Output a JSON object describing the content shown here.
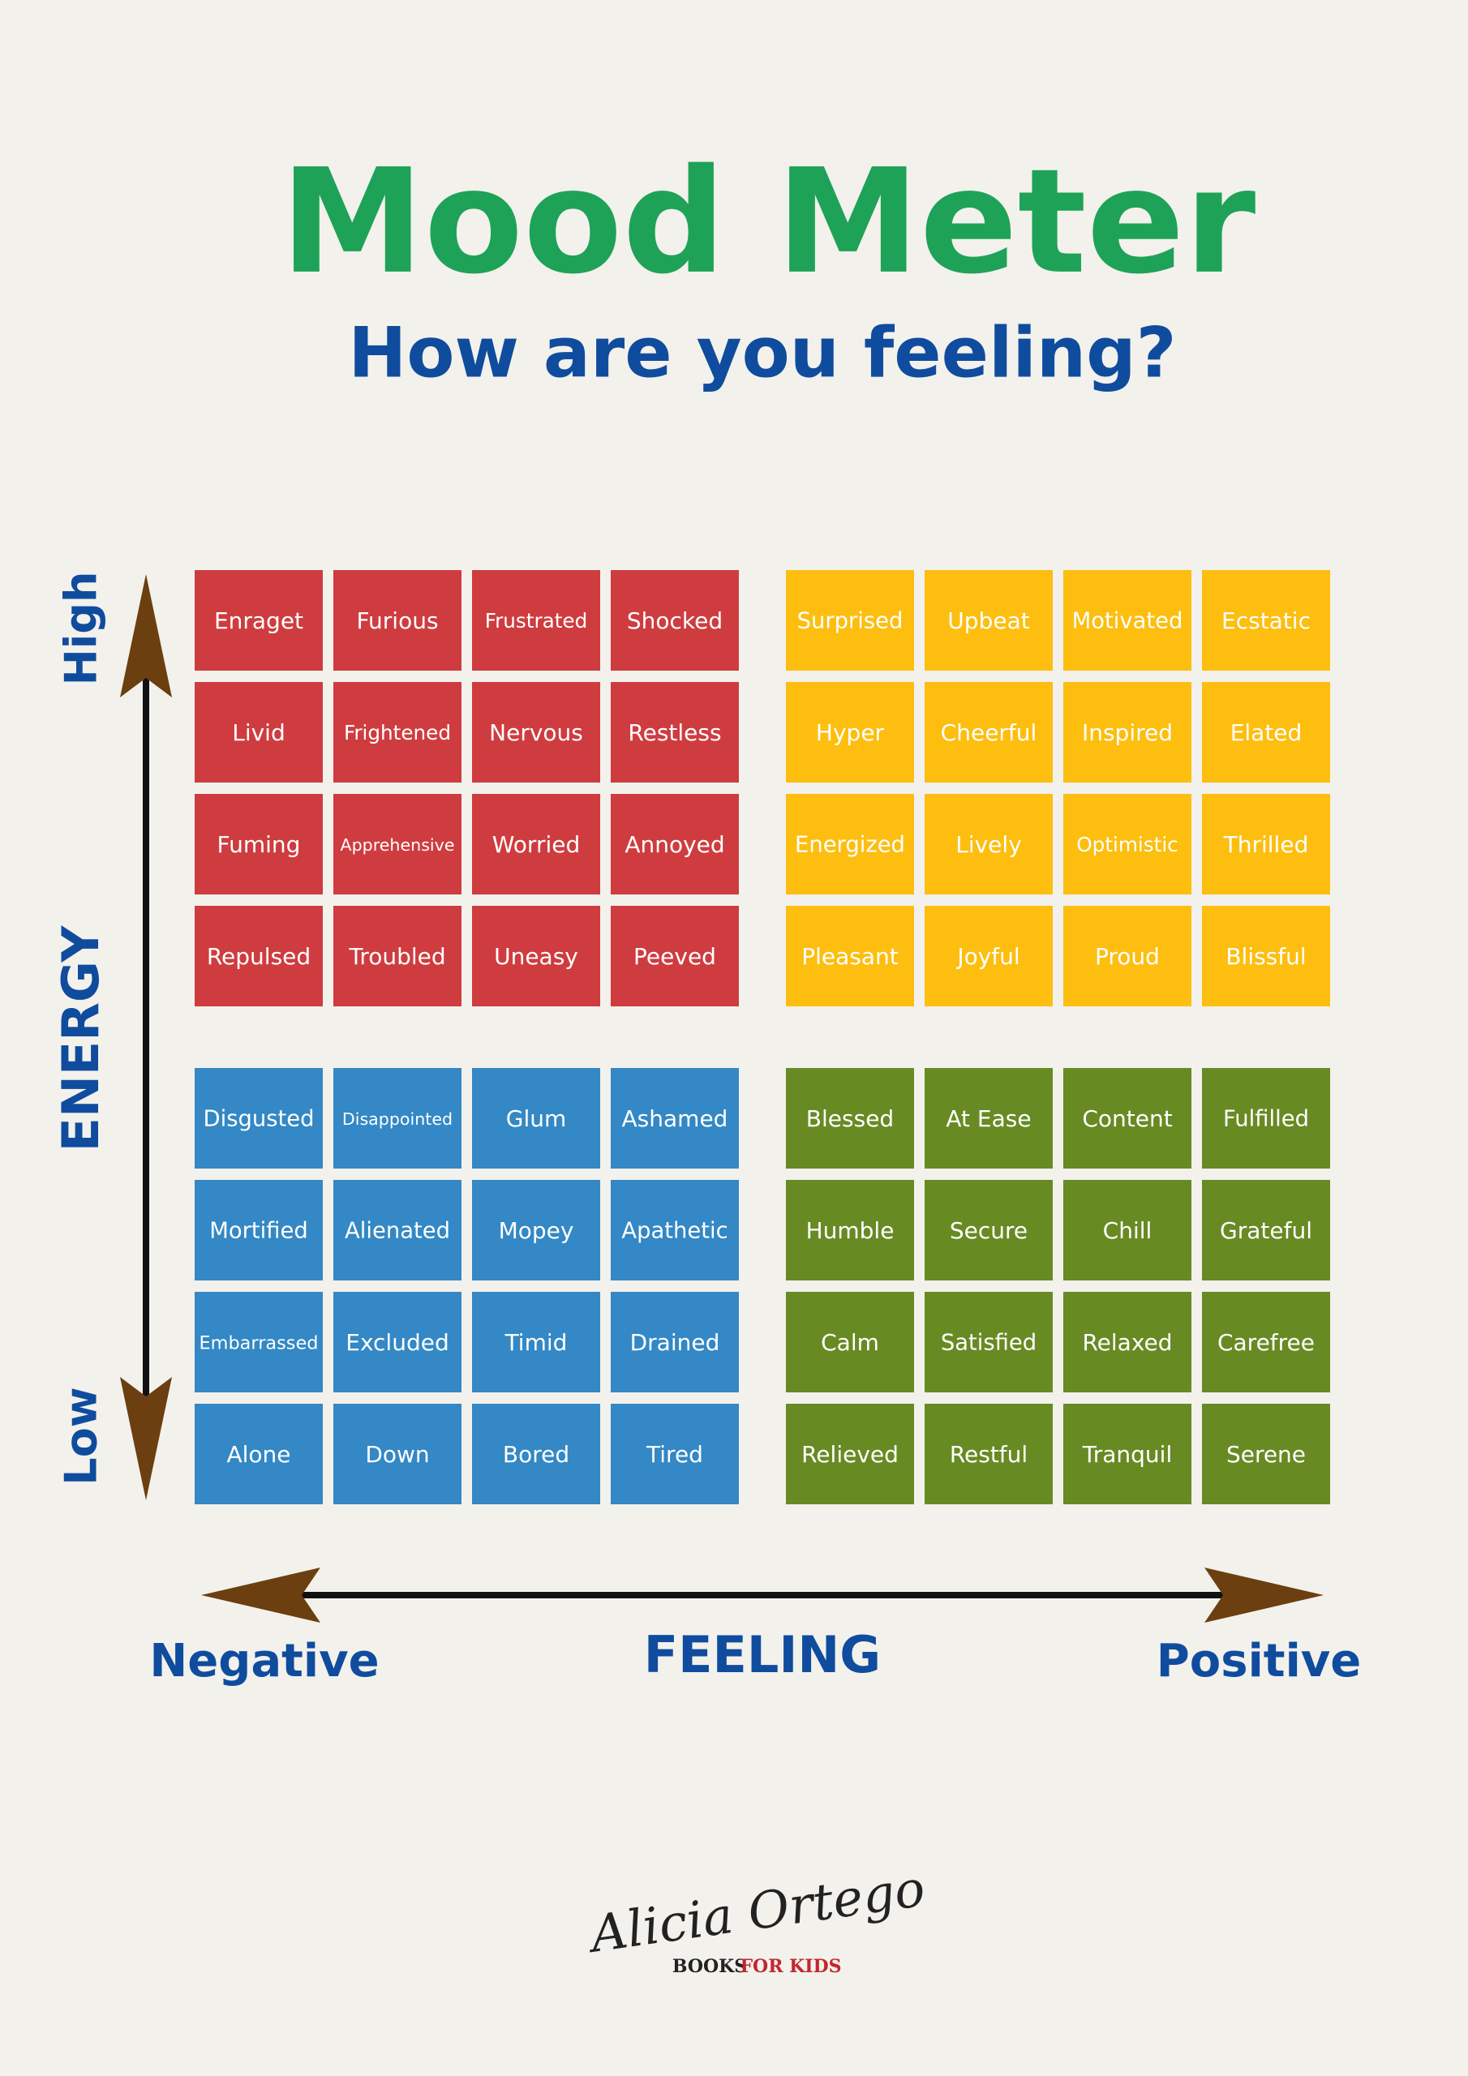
{
  "header": {
    "title": "Mood Meter",
    "subtitle": "How are you feeling?"
  },
  "axes": {
    "vertical": {
      "label": "ENERGY",
      "high": "High",
      "low": "Low"
    },
    "horizontal": {
      "label": "FEELING",
      "negative": "Negative",
      "positive": "Positive"
    }
  },
  "quadrants": [
    {
      "color": "#cf3c3f",
      "rows": [
        [
          "Enraget",
          "Furious",
          "Frustrated",
          "Shocked"
        ],
        [
          "Livid",
          "Frightened",
          "Nervous",
          "Restless"
        ],
        [
          "Fuming",
          "Apprehensive",
          "Worried",
          "Annoyed"
        ],
        [
          "Repulsed",
          "Troubled",
          "Uneasy",
          "Peeved"
        ]
      ]
    },
    {
      "color": "#fdbe10",
      "rows": [
        [
          "Surprised",
          "Upbeat",
          "Motivated",
          "Ecstatic"
        ],
        [
          "Hyper",
          "Cheerful",
          "Inspired",
          "Elated"
        ],
        [
          "Energized",
          "Lively",
          "Optimistic",
          "Thrilled"
        ],
        [
          "Pleasant",
          "Joyful",
          "Proud",
          "Blissful"
        ]
      ]
    },
    {
      "color": "#3388c5",
      "rows": [
        [
          "Disgusted",
          "Disappointed",
          "Glum",
          "Ashamed"
        ],
        [
          "Mortified",
          "Alienated",
          "Mopey",
          "Apathetic"
        ],
        [
          "Embarrassed",
          "Excluded",
          "Timid",
          "Drained"
        ],
        [
          "Alone",
          "Down",
          "Bored",
          "Tired"
        ]
      ]
    },
    {
      "color": "#688a23",
      "rows": [
        [
          "Blessed",
          "At Ease",
          "Content",
          "Fulfilled"
        ],
        [
          "Humble",
          "Secure",
          "Chill",
          "Grateful"
        ],
        [
          "Calm",
          "Satisfied",
          "Relaxed",
          "Carefree"
        ],
        [
          "Relieved",
          "Restful",
          "Tranquil",
          "Serene"
        ]
      ]
    }
  ],
  "footer": {
    "author": "Alicia Ortego",
    "books": "BOOKS",
    "for_kids": "FOR KIDS"
  }
}
